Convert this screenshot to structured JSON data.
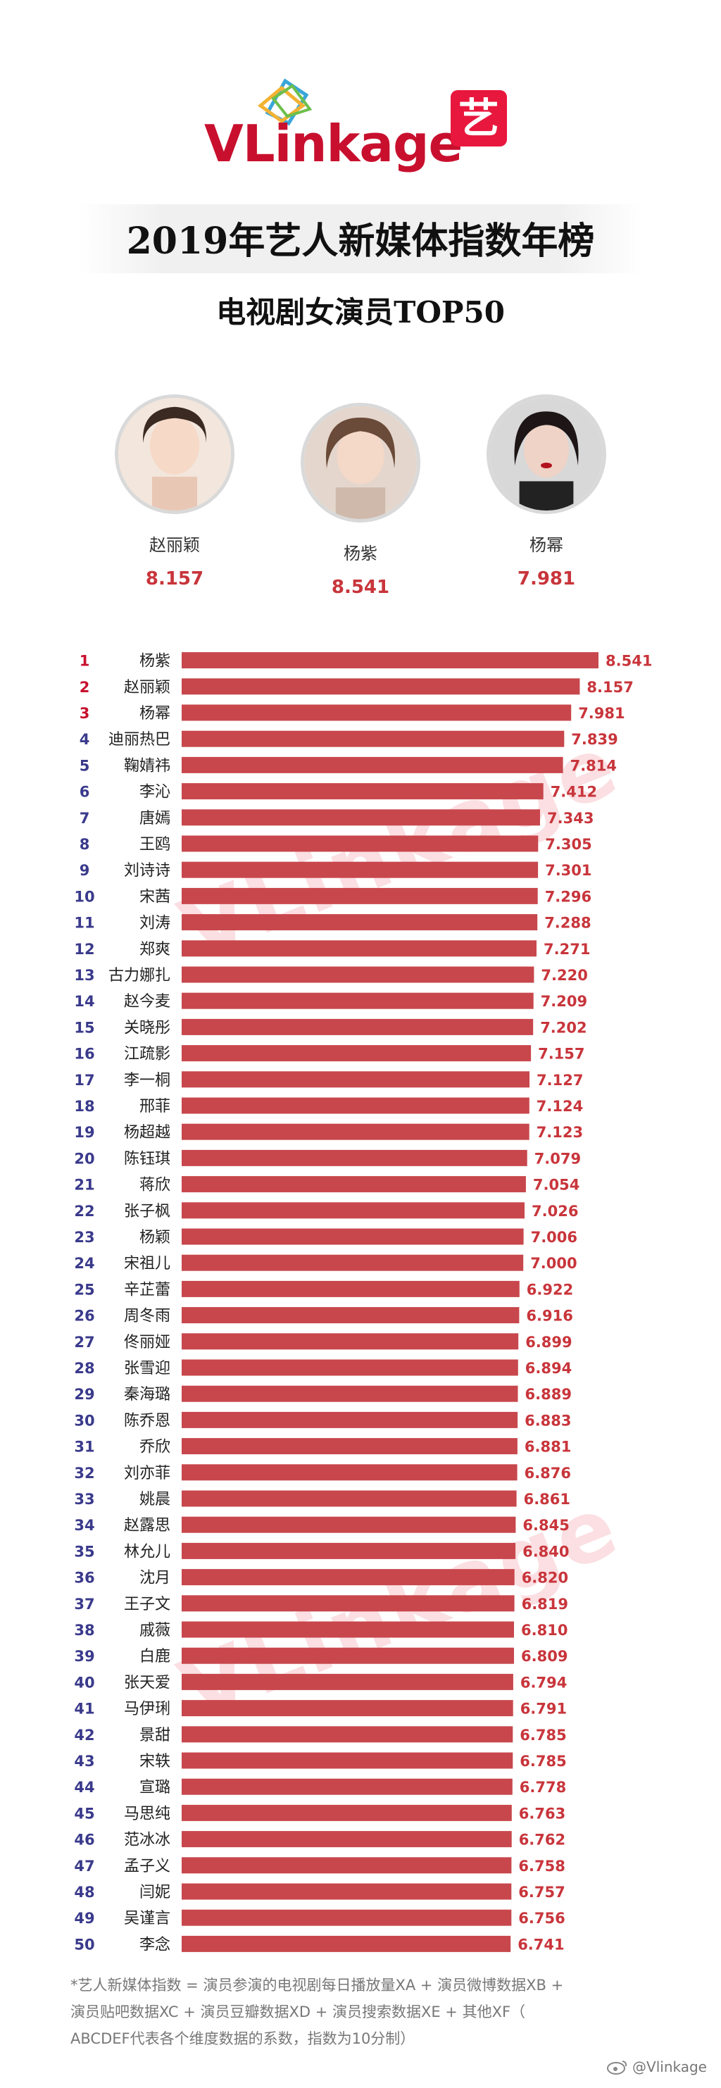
{
  "header": {
    "logo_text_a": "VL",
    "logo_text_b": "inkage",
    "logo_yi": "艺",
    "title": "2019年艺人新媒体指数年榜",
    "subtitle": "电视剧女演员TOP50"
  },
  "top3": [
    {
      "name": "赵丽颖",
      "score": "8.157",
      "icon": "avatar-icon"
    },
    {
      "name": "杨紫",
      "score": "8.541",
      "icon": "avatar-icon"
    },
    {
      "name": "杨幂",
      "score": "7.981",
      "icon": "avatar-icon"
    }
  ],
  "watermark": "VLinkage",
  "colors": {
    "bar": "#c8474c",
    "value": "#c8353b",
    "rank_top": "#c8102e",
    "rank": "#3a3a8c",
    "name": "#222222"
  },
  "chart_data": {
    "type": "bar",
    "orientation": "horizontal",
    "title": "电视剧女演员TOP50",
    "xlim": [
      0,
      8.541
    ],
    "grid": false,
    "ranks": [
      1,
      2,
      3,
      4,
      5,
      6,
      7,
      8,
      9,
      10,
      11,
      12,
      13,
      14,
      15,
      16,
      17,
      18,
      19,
      20,
      21,
      22,
      23,
      24,
      25,
      26,
      27,
      28,
      29,
      30,
      31,
      32,
      33,
      34,
      35,
      36,
      37,
      38,
      39,
      40,
      41,
      42,
      43,
      44,
      45,
      46,
      47,
      48,
      49,
      50
    ],
    "categories": [
      "杨紫",
      "赵丽颖",
      "杨幂",
      "迪丽热巴",
      "鞠婧祎",
      "李沁",
      "唐嫣",
      "王鸥",
      "刘诗诗",
      "宋茜",
      "刘涛",
      "郑爽",
      "古力娜扎",
      "赵今麦",
      "关晓彤",
      "江疏影",
      "李一桐",
      "邢菲",
      "杨超越",
      "陈钰琪",
      "蒋欣",
      "张子枫",
      "杨颖",
      "宋祖儿",
      "辛芷蕾",
      "周冬雨",
      "佟丽娅",
      "张雪迎",
      "秦海璐",
      "陈乔恩",
      "乔欣",
      "刘亦菲",
      "姚晨",
      "赵露思",
      "林允儿",
      "沈月",
      "王子文",
      "戚薇",
      "白鹿",
      "张天爱",
      "马伊琍",
      "景甜",
      "宋轶",
      "宣璐",
      "马思纯",
      "范冰冰",
      "孟子义",
      "闫妮",
      "吴谨言",
      "李念"
    ],
    "values": [
      8.541,
      8.157,
      7.981,
      7.839,
      7.814,
      7.412,
      7.343,
      7.305,
      7.301,
      7.296,
      7.288,
      7.271,
      7.22,
      7.209,
      7.202,
      7.157,
      7.127,
      7.124,
      7.123,
      7.079,
      7.054,
      7.026,
      7.006,
      7.0,
      6.922,
      6.916,
      6.899,
      6.894,
      6.889,
      6.883,
      6.881,
      6.876,
      6.861,
      6.845,
      6.84,
      6.82,
      6.819,
      6.81,
      6.809,
      6.794,
      6.791,
      6.785,
      6.785,
      6.778,
      6.763,
      6.762,
      6.758,
      6.757,
      6.756,
      6.741
    ],
    "value_labels": [
      "8.541",
      "8.157",
      "7.981",
      "7.839",
      "7.814",
      "7.412",
      "7.343",
      "7.305",
      "7.301",
      "7.296",
      "7.288",
      "7.271",
      "7.220",
      "7.209",
      "7.202",
      "7.157",
      "7.127",
      "7.124",
      "7.123",
      "7.079",
      "7.054",
      "7.026",
      "7.006",
      "7.000",
      "6.922",
      "6.916",
      "6.899",
      "6.894",
      "6.889",
      "6.883",
      "6.881",
      "6.876",
      "6.861",
      "6.845",
      "6.840",
      "6.820",
      "6.819",
      "6.810",
      "6.809",
      "6.794",
      "6.791",
      "6.785",
      "6.785",
      "6.778",
      "6.763",
      "6.762",
      "6.758",
      "6.757",
      "6.756",
      "6.741"
    ]
  },
  "footnote": {
    "line1": "*艺人新媒体指数 = 演员参演的电视剧每日播放量XA + 演员微博数据XB +",
    "line2": "演员贴吧数据XC + 演员豆瓣数据XD + 演员搜索数据XE + 其他XF（",
    "line3": "ABCDEF代表各个维度数据的系数，指数为10分制）"
  },
  "credit": {
    "handle": "@Vlinkage",
    "icon": "weibo-icon"
  }
}
